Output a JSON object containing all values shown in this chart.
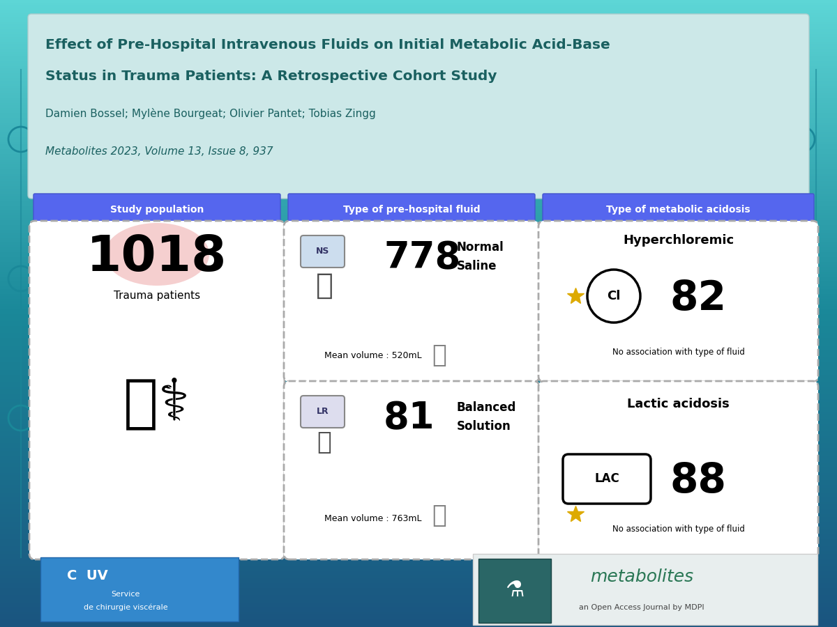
{
  "title_line1": "Effect of Pre-Hospital Intravenous Fluids on Initial Metabolic Acid-Base",
  "title_line2": "Status in Trauma Patients: A Retrospective Cohort Study",
  "authors": "Damien Bossel; Mylène Bourgeat; Olivier Pantet; Tobias Zingg",
  "journal": "Metabolites 2023, Volume 13, Issue 8, 937",
  "bg_gradient_top": "#5dd6d6",
  "bg_gradient_bottom": "#1a5580",
  "header_bg": "#d0e8e8",
  "col_header_color": "#5555ee",
  "col1_header": "Study population",
  "col2_header": "Type of pre-hospital fluid",
  "col3_header": "Type of metabolic acidosis",
  "study_pop_number": "1018",
  "study_pop_label": "Trauma patients",
  "ns_number": "778",
  "ns_label": "Normal\nSaline",
  "ns_badge": "NS",
  "ns_volume": "Mean volume : 520mL",
  "lr_number": "81",
  "lr_label": "Balanced\nSolution",
  "lr_badge": "LR",
  "lr_volume": "Mean volume : 763mL",
  "hyper_title": "Hyperchloremic",
  "hyper_badge": "Cl",
  "hyper_number": "82",
  "hyper_note": "No association with type of fluid",
  "lactic_title": "Lactic acidosis",
  "lactic_badge": "LAC",
  "lactic_number": "88",
  "lactic_note": "No association with type of fluid",
  "chuv_text1": "Service",
  "chuv_text2": "de chirurgie viscérale",
  "metabolites_text": "metabolites",
  "metabolites_sub": "an Open Access Journal by MDPI",
  "white": "#ffffff",
  "black": "#000000",
  "teal_dark": "#1a6060",
  "card_bg": "#f0f5f5",
  "dashed_border": "#555555"
}
